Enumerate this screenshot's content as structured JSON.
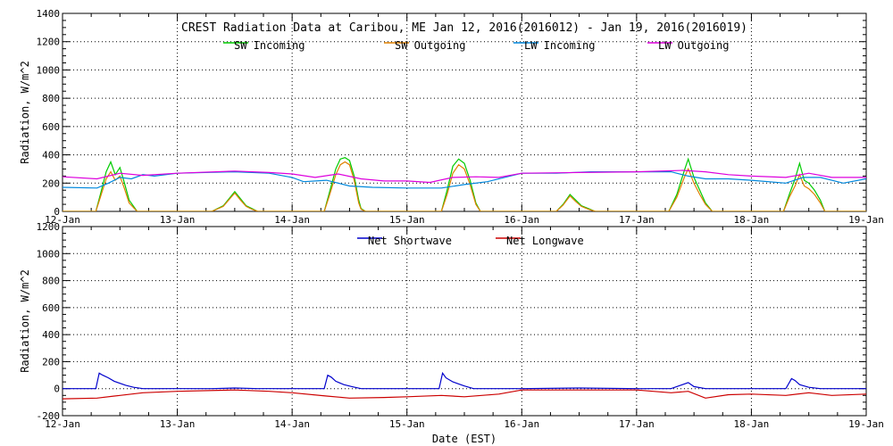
{
  "chart_data": [
    {
      "type": "line",
      "title": "CREST Radiation Data at Caribou, ME   Jan 12, 2016(2016012) - Jan 19, 2016(2016019)",
      "ylabel": "Radiation, W/m^2",
      "xlabel": "",
      "ylim": [
        0,
        1400
      ],
      "yticks": [
        0,
        200,
        400,
        600,
        800,
        1000,
        1200,
        1400
      ],
      "xlim": [
        0,
        7
      ],
      "xtick_labels": [
        "12-Jan",
        "13-Jan",
        "14-Jan",
        "15-Jan",
        "16-Jan",
        "17-Jan",
        "18-Jan",
        "19-Jan"
      ],
      "grid": true,
      "legend": "top",
      "x_units": "days since 12-Jan",
      "series": [
        {
          "name": "SW Incoming",
          "color": "#00cc00",
          "x": [
            0,
            0.29,
            0.33,
            0.38,
            0.42,
            0.46,
            0.5,
            0.54,
            0.58,
            0.65,
            1.0,
            1.3,
            1.4,
            1.5,
            1.55,
            1.6,
            1.65,
            1.7,
            2.0,
            2.28,
            2.32,
            2.38,
            2.42,
            2.46,
            2.5,
            2.54,
            2.58,
            2.6,
            2.64,
            3.0,
            3.3,
            3.35,
            3.4,
            3.45,
            3.5,
            3.55,
            3.6,
            3.64,
            4.0,
            4.3,
            4.36,
            4.42,
            4.47,
            4.52,
            4.58,
            4.64,
            5.0,
            5.28,
            5.35,
            5.42,
            5.45,
            5.5,
            5.55,
            5.6,
            5.66,
            6.0,
            6.28,
            6.33,
            6.38,
            6.42,
            6.46,
            6.5,
            6.55,
            6.6,
            6.64,
            7.0
          ],
          "y": [
            0,
            0,
            120,
            280,
            350,
            260,
            310,
            200,
            80,
            0,
            0,
            0,
            40,
            140,
            90,
            40,
            20,
            0,
            0,
            0,
            120,
            300,
            370,
            380,
            360,
            250,
            80,
            20,
            0,
            0,
            0,
            150,
            320,
            370,
            340,
            220,
            60,
            0,
            0,
            0,
            50,
            120,
            80,
            40,
            20,
            0,
            0,
            0,
            120,
            300,
            370,
            240,
            150,
            60,
            0,
            0,
            0,
            120,
            230,
            340,
            220,
            200,
            150,
            80,
            0,
            0
          ]
        },
        {
          "name": "SW Outgoing",
          "color": "#e08000",
          "x": [
            0,
            0.29,
            0.33,
            0.38,
            0.42,
            0.46,
            0.5,
            0.54,
            0.58,
            0.65,
            1.0,
            1.3,
            1.4,
            1.5,
            1.55,
            1.6,
            1.65,
            1.7,
            2.0,
            2.28,
            2.32,
            2.38,
            2.42,
            2.46,
            2.5,
            2.54,
            2.58,
            2.6,
            2.64,
            3.0,
            3.3,
            3.35,
            3.4,
            3.45,
            3.5,
            3.55,
            3.6,
            3.64,
            4.0,
            4.3,
            4.36,
            4.42,
            4.47,
            4.52,
            4.58,
            4.64,
            5.0,
            5.28,
            5.35,
            5.42,
            5.45,
            5.5,
            5.55,
            5.6,
            5.66,
            6.0,
            6.28,
            6.33,
            6.38,
            6.42,
            6.46,
            6.5,
            6.55,
            6.6,
            6.64,
            7.0
          ],
          "y": [
            0,
            0,
            100,
            230,
            280,
            220,
            250,
            160,
            60,
            0,
            0,
            0,
            35,
            130,
            80,
            35,
            15,
            0,
            0,
            0,
            100,
            260,
            330,
            350,
            330,
            220,
            60,
            15,
            0,
            0,
            0,
            120,
            270,
            330,
            300,
            190,
            50,
            0,
            0,
            0,
            45,
            110,
            70,
            35,
            15,
            0,
            0,
            0,
            100,
            250,
            300,
            200,
            120,
            50,
            0,
            0,
            0,
            100,
            180,
            260,
            180,
            160,
            120,
            60,
            0,
            0
          ]
        },
        {
          "name": "LW Incoming",
          "color": "#0088dd",
          "x": [
            0,
            0.3,
            0.4,
            0.5,
            0.6,
            0.7,
            0.8,
            1.0,
            1.5,
            1.8,
            2.0,
            2.1,
            2.3,
            2.5,
            2.7,
            3.0,
            3.3,
            3.5,
            3.7,
            4.0,
            4.3,
            4.6,
            5.0,
            5.3,
            5.45,
            5.6,
            5.8,
            6.0,
            6.3,
            6.45,
            6.6,
            6.8,
            7.0
          ],
          "y": [
            170,
            165,
            200,
            240,
            230,
            260,
            250,
            270,
            280,
            270,
            240,
            210,
            220,
            180,
            170,
            165,
            165,
            190,
            210,
            270,
            270,
            280,
            280,
            280,
            250,
            230,
            230,
            220,
            200,
            240,
            240,
            200,
            230
          ]
        },
        {
          "name": "LW Outgoing",
          "color": "#dd00dd",
          "x": [
            0,
            0.3,
            0.5,
            0.7,
            1.0,
            1.5,
            1.8,
            2.0,
            2.2,
            2.4,
            2.6,
            2.8,
            3.0,
            3.2,
            3.4,
            3.6,
            3.8,
            4.0,
            4.5,
            5.0,
            5.4,
            5.6,
            5.8,
            6.0,
            6.3,
            6.5,
            6.7,
            7.0
          ],
          "y": [
            245,
            230,
            270,
            255,
            270,
            285,
            275,
            265,
            240,
            265,
            230,
            215,
            215,
            205,
            240,
            245,
            240,
            270,
            275,
            280,
            290,
            280,
            260,
            250,
            240,
            270,
            240,
            240
          ]
        }
      ]
    },
    {
      "type": "line",
      "title": "",
      "ylabel": "Radiation, W/m^2",
      "xlabel": "Date (EST)",
      "ylim": [
        -200,
        1200
      ],
      "yticks": [
        -200,
        0,
        200,
        400,
        600,
        800,
        1000,
        1200
      ],
      "xlim": [
        0,
        7
      ],
      "xtick_labels": [
        "12-Jan",
        "13-Jan",
        "14-Jan",
        "15-Jan",
        "16-Jan",
        "17-Jan",
        "18-Jan",
        "19-Jan"
      ],
      "grid": true,
      "legend": "top",
      "x_units": "days since 12-Jan",
      "series": [
        {
          "name": "Net Shortwave",
          "color": "#0000cc",
          "x": [
            0,
            0.29,
            0.32,
            0.35,
            0.4,
            0.45,
            0.5,
            0.55,
            0.62,
            0.7,
            1.0,
            1.3,
            1.5,
            1.7,
            2.0,
            2.28,
            2.31,
            2.34,
            2.38,
            2.45,
            2.52,
            2.6,
            3.0,
            3.28,
            3.31,
            3.34,
            3.4,
            3.45,
            3.5,
            3.58,
            4.0,
            4.5,
            5.0,
            5.3,
            5.4,
            5.45,
            5.5,
            5.6,
            6.0,
            6.3,
            6.35,
            6.38,
            6.42,
            6.5,
            6.6,
            7.0
          ],
          "y": [
            0,
            0,
            115,
            100,
            80,
            55,
            40,
            25,
            10,
            0,
            0,
            0,
            5,
            0,
            0,
            0,
            100,
            85,
            55,
            30,
            15,
            0,
            0,
            0,
            115,
            80,
            50,
            35,
            20,
            0,
            0,
            5,
            0,
            0,
            30,
            45,
            15,
            0,
            0,
            0,
            75,
            60,
            30,
            10,
            0,
            0
          ]
        },
        {
          "name": "Net Longwave",
          "color": "#cc0000",
          "x": [
            0,
            0.3,
            0.5,
            0.7,
            1.0,
            1.5,
            1.8,
            2.0,
            2.3,
            2.5,
            2.8,
            3.0,
            3.3,
            3.5,
            3.8,
            4.0,
            4.5,
            5.0,
            5.3,
            5.45,
            5.6,
            5.8,
            6.0,
            6.3,
            6.5,
            6.7,
            7.0
          ],
          "y": [
            -75,
            -70,
            -50,
            -30,
            -20,
            -10,
            -20,
            -30,
            -55,
            -70,
            -65,
            -60,
            -50,
            -60,
            -40,
            -10,
            -10,
            -10,
            -30,
            -20,
            -70,
            -45,
            -40,
            -50,
            -30,
            -50,
            -40
          ]
        }
      ]
    }
  ]
}
